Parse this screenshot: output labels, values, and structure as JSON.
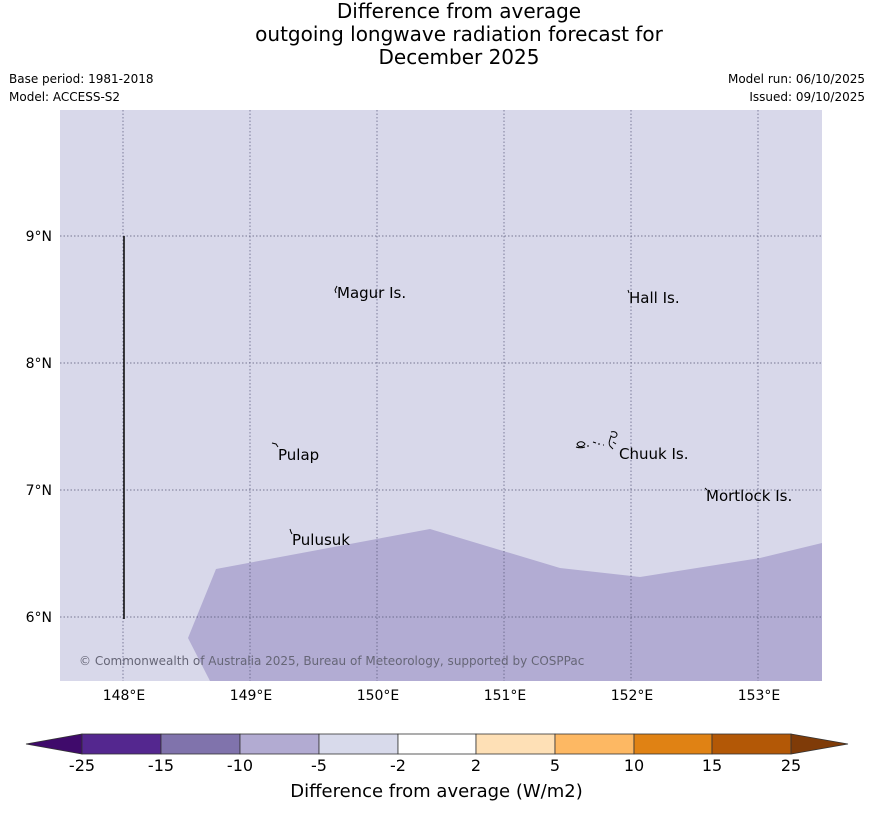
{
  "title": {
    "line1": "Difference from average",
    "line2": "outgoing longwave radiation forecast for",
    "line3": "December 2025"
  },
  "meta": {
    "base_period": "Base period: 1981-2018",
    "model": "Model: ACCESS-S2",
    "model_run": "Model run: 06/10/2025",
    "issued": "Issued: 09/10/2025"
  },
  "map": {
    "lat_labels": [
      "9°N",
      "8°N",
      "7°N",
      "6°N"
    ],
    "lon_labels": [
      "148°E",
      "149°E",
      "150°E",
      "151°E",
      "152°E",
      "153°E"
    ],
    "places": [
      "Magur Is.",
      "Hall Is.",
      "Pulap",
      "Chuuk Is.",
      "Mortlock Is.",
      "Pulusuk"
    ],
    "copyright": "© Commonwealth of Australia 2025, Bureau of Meteorology, supported by COSPPac",
    "colors": {
      "background_fill": "#d8d8ea",
      "anomaly_fill": "#b2acd3",
      "grid": "#555577"
    }
  },
  "colorbar": {
    "ticks": [
      "-25",
      "-15",
      "-10",
      "-5",
      "-2",
      "2",
      "5",
      "10",
      "15",
      "25"
    ],
    "colors": [
      "#3f0a6b",
      "#54278f",
      "#8073ac",
      "#b2abd2",
      "#d8daeb",
      "#ffffff",
      "#fee0b6",
      "#fdb863",
      "#e08214",
      "#b35806",
      "#7f3b08"
    ],
    "label": "Difference from average (W/m2)"
  }
}
